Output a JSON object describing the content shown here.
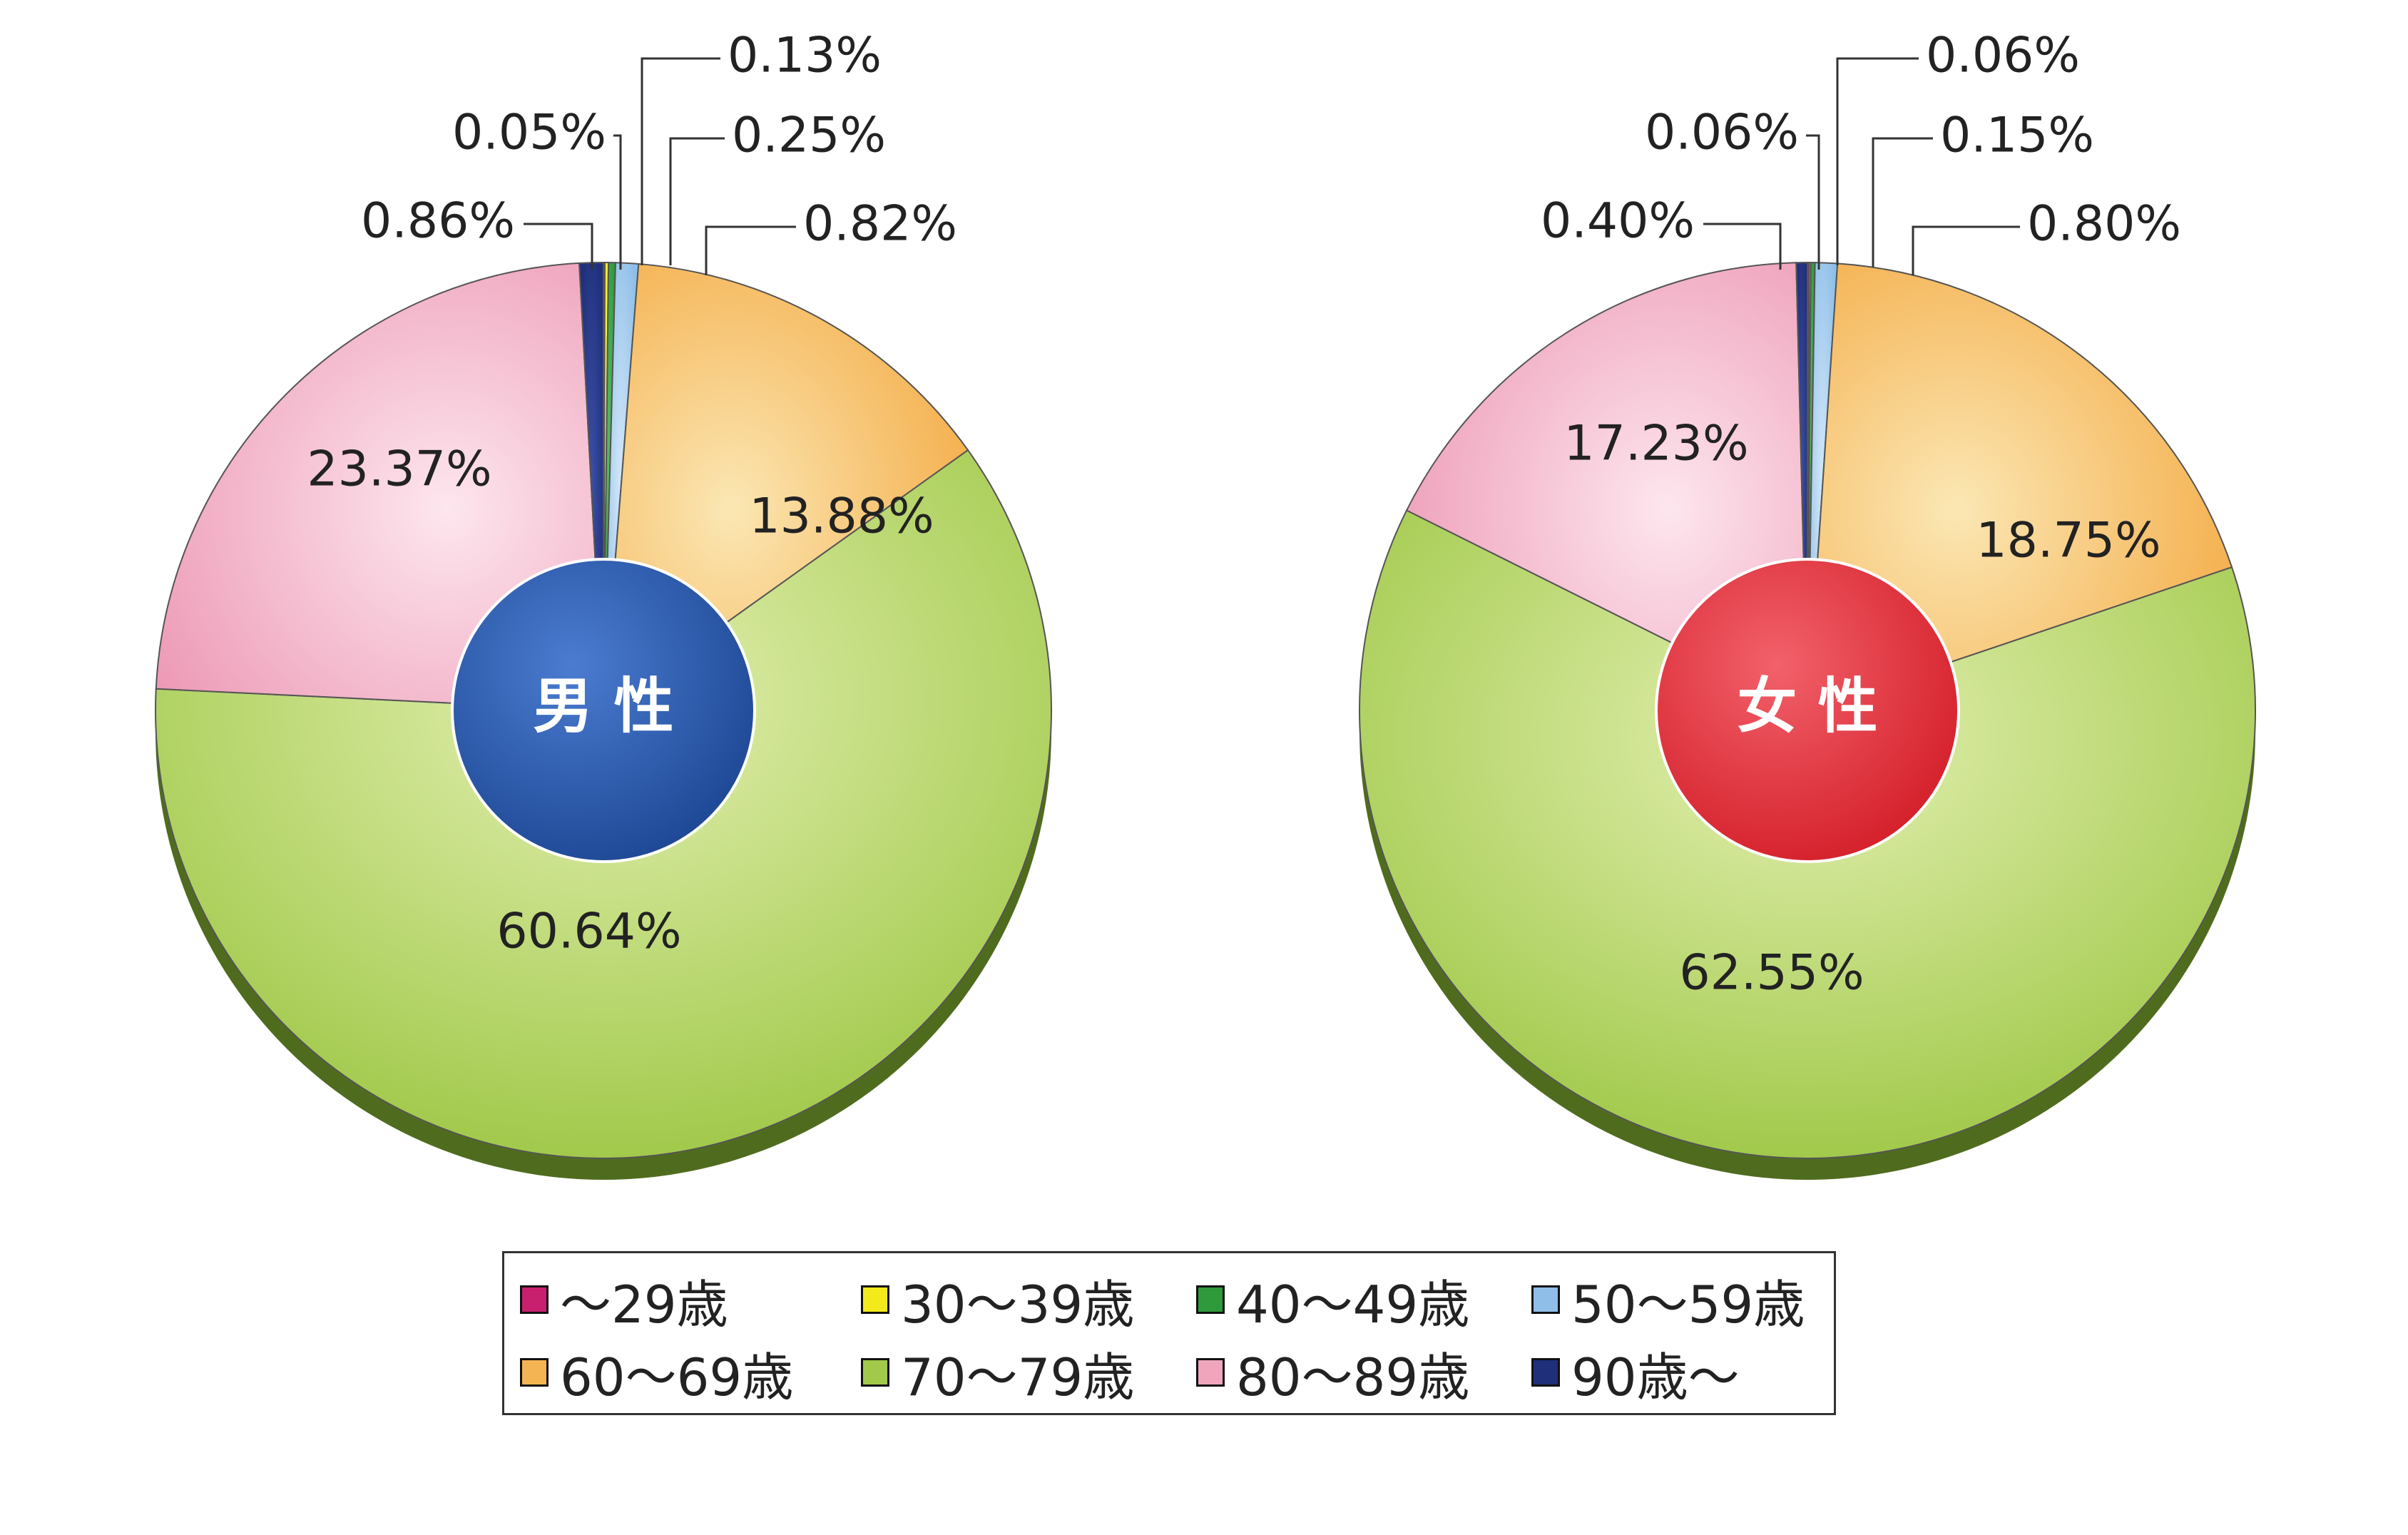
{
  "chart_data": [
    {
      "type": "pie",
      "center_label": "男 性",
      "center_color": "#2d5aa8",
      "categories": [
        "～29歳",
        "30～39歳",
        "40～49歳",
        "50～59歳",
        "60～69歳",
        "70～79歳",
        "80～89歳",
        "90歳～"
      ],
      "values": [
        0.05,
        0.13,
        0.25,
        0.82,
        13.88,
        60.64,
        23.37,
        0.86
      ],
      "labels": [
        "0.05%",
        "0.13%",
        "0.25%",
        "0.82%",
        "13.88%",
        "60.64%",
        "23.37%",
        "0.86%"
      ]
    },
    {
      "type": "pie",
      "center_label": "女 性",
      "center_color": "#e23237",
      "categories": [
        "～29歳",
        "30～39歳",
        "40～49歳",
        "50～59歳",
        "60～69歳",
        "70～79歳",
        "80～89歳",
        "90歳～"
      ],
      "values": [
        0.06,
        0.06,
        0.15,
        0.8,
        18.75,
        62.55,
        17.23,
        0.4
      ],
      "labels": [
        "0.06%",
        "0.06%",
        "0.15%",
        "0.80%",
        "18.75%",
        "62.55%",
        "17.23%",
        "0.40%"
      ]
    }
  ],
  "legend": {
    "items": [
      {
        "label": "～29歳",
        "color": "#c8206e"
      },
      {
        "label": "30～39歳",
        "color": "#f2ea1a"
      },
      {
        "label": "40～49歳",
        "color": "#2e9a3c"
      },
      {
        "label": "50～59歳",
        "color": "#8fbfe8"
      },
      {
        "label": "60～69歳",
        "color": "#f5b453"
      },
      {
        "label": "70～79歳",
        "color": "#a3c94a"
      },
      {
        "label": "80～89歳",
        "color": "#f0a5bd"
      },
      {
        "label": "90歳～",
        "color": "#1f2f7a"
      }
    ]
  }
}
